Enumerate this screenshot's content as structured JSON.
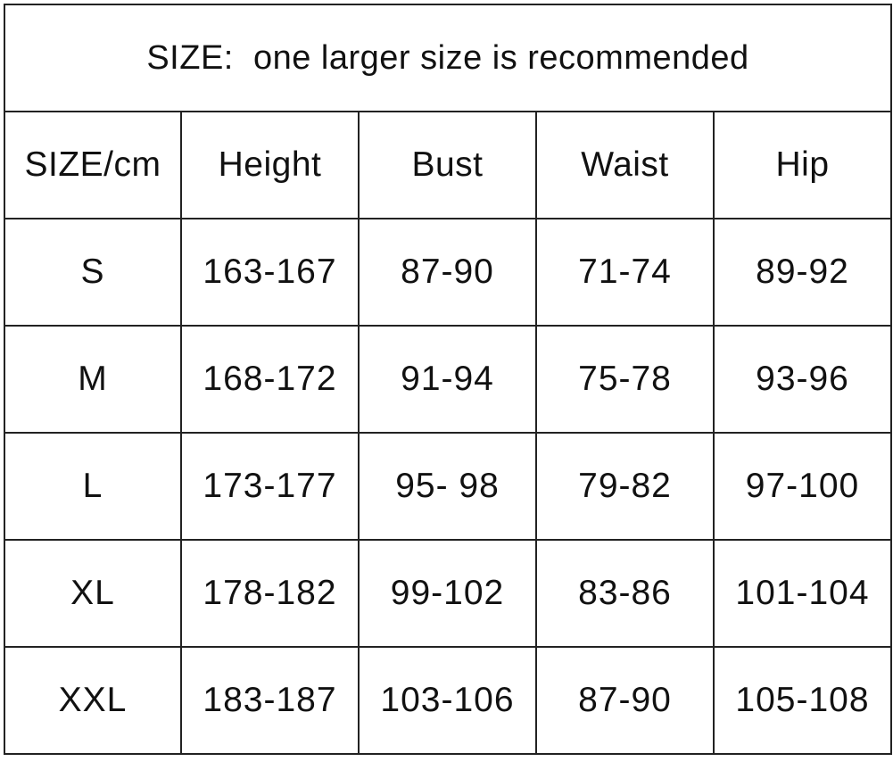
{
  "title": "SIZE:  one larger size is recommended",
  "headers": [
    "SIZE/cm",
    "Height",
    "Bust",
    "Waist",
    "Hip"
  ],
  "rows": [
    [
      "S",
      "163-167",
      "87-90",
      "71-74",
      "89-92"
    ],
    [
      "M",
      "168-172",
      "91-94",
      "75-78",
      "93-96"
    ],
    [
      "L",
      "173-177",
      "95- 98",
      "79-82",
      "97-100"
    ],
    [
      "XL",
      "178-182",
      "99-102",
      "83-86",
      "101-104"
    ],
    [
      "XXL",
      "183-187",
      "103-106",
      "87-90",
      "105-108"
    ]
  ]
}
